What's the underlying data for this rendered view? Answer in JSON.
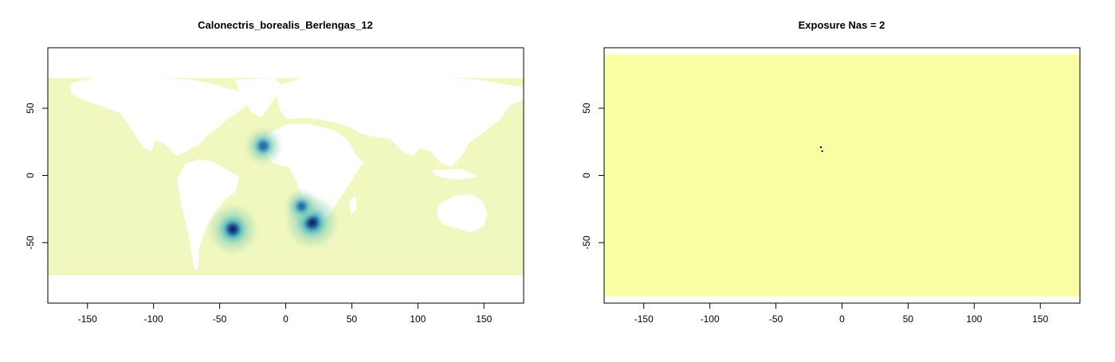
{
  "chart_data": [
    {
      "type": "heatmap",
      "title": "Calonectris_borealis_Berlengas_12",
      "xlim": [
        -180,
        180
      ],
      "ylim": [
        -95,
        95
      ],
      "x_ticks": [
        -150,
        -100,
        -50,
        0,
        50,
        100,
        150
      ],
      "y_ticks": [
        -50,
        0,
        50
      ],
      "x_tick_labels": [
        "-150",
        "-100",
        "-50",
        "0",
        "50",
        "100",
        "150"
      ],
      "y_tick_labels": [
        "-50",
        "0",
        "50"
      ],
      "ocean_color": "#f1f8bf",
      "land_color": "#ffffff",
      "data_extent": {
        "lon": [
          -180,
          180
        ],
        "lat": [
          -75,
          75
        ]
      },
      "hotspots": [
        {
          "lon": -40,
          "lat": -40,
          "intensity": 0.9
        },
        {
          "lon": 20,
          "lat": -35,
          "intensity": 1.0
        },
        {
          "lon": -17,
          "lat": 22,
          "intensity": 0.5
        },
        {
          "lon": 12,
          "lat": -23,
          "intensity": 0.4
        }
      ],
      "color_scale": [
        "#f1f8bf",
        "#a6dbb8",
        "#41b6c4",
        "#225ea8",
        "#081d58"
      ]
    },
    {
      "type": "heatmap",
      "title": "Exposure Nas = 2",
      "xlim": [
        -180,
        180
      ],
      "ylim": [
        -95,
        95
      ],
      "x_ticks": [
        -150,
        -100,
        -50,
        0,
        50,
        100,
        150
      ],
      "y_ticks": [
        -50,
        0,
        50
      ],
      "x_tick_labels": [
        "-150",
        "-100",
        "-50",
        "0",
        "50",
        "100",
        "150"
      ],
      "y_tick_labels": [
        "-50",
        "0",
        "50"
      ],
      "fill_color": "#fafea2",
      "data_extent": {
        "lon": [
          -180,
          180
        ],
        "lat": [
          -90,
          90
        ]
      },
      "na_points": [
        {
          "lon": -16,
          "lat": 21
        },
        {
          "lon": -15,
          "lat": 18
        }
      ]
    }
  ]
}
